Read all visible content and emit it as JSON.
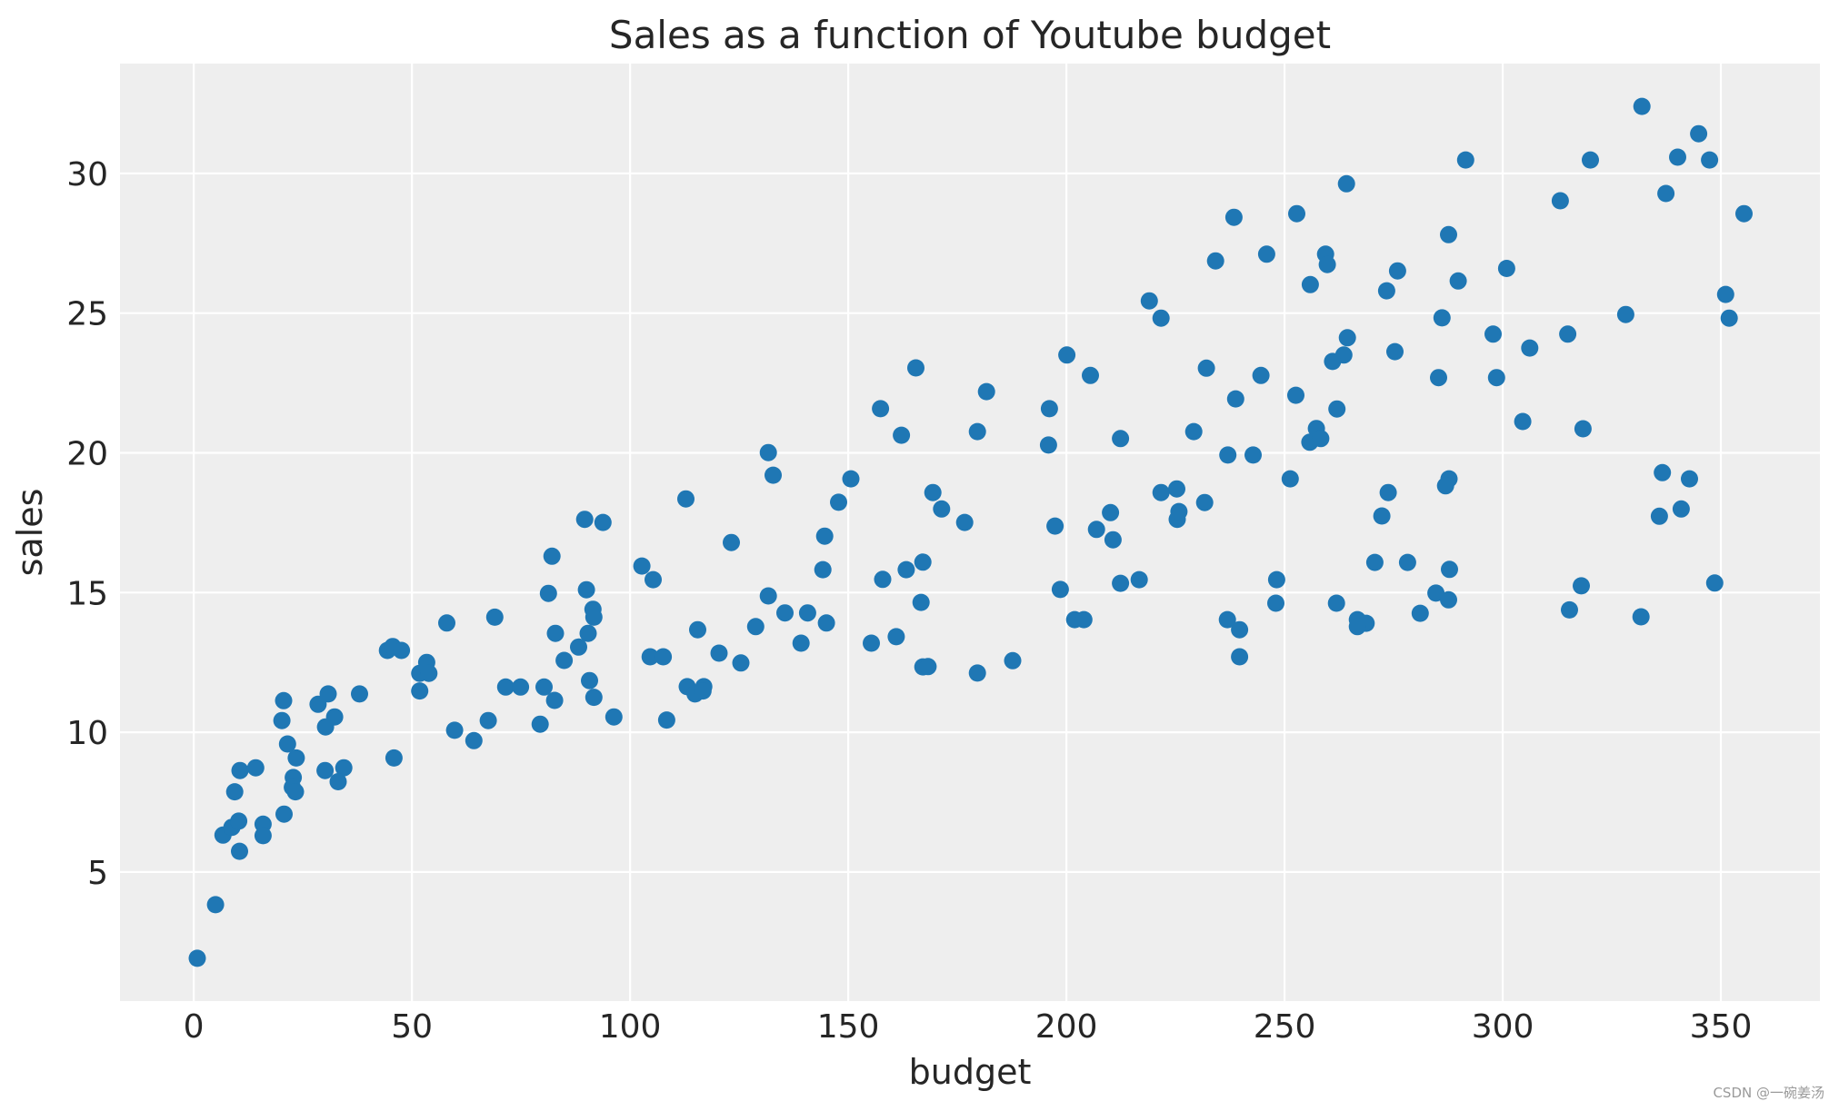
{
  "chart_data": {
    "type": "scatter",
    "title": "Sales as a function of Youtube budget",
    "xlabel": "budget",
    "ylabel": "sales",
    "xlim": [
      -16.9,
      372.7
    ],
    "ylim": [
      0.38,
      33.93
    ],
    "xticks": [
      0,
      50,
      100,
      150,
      200,
      250,
      300,
      350
    ],
    "yticks": [
      5,
      10,
      15,
      20,
      25,
      30
    ],
    "grid": true,
    "legend": null,
    "marker_color": "#1f77b4",
    "background_color": "#eeeeee",
    "points": [
      [
        0.8,
        1.91
      ],
      [
        5.0,
        3.83
      ],
      [
        6.7,
        6.32
      ],
      [
        8.75,
        6.6
      ],
      [
        10.3,
        6.82
      ],
      [
        10.5,
        5.74
      ],
      [
        9.4,
        7.87
      ],
      [
        10.6,
        8.63
      ],
      [
        14.2,
        8.73
      ],
      [
        15.9,
        6.71
      ],
      [
        15.9,
        6.3
      ],
      [
        20.7,
        7.07
      ],
      [
        20.6,
        11.13
      ],
      [
        20.2,
        10.42
      ],
      [
        21.5,
        9.58
      ],
      [
        23.5,
        9.08
      ],
      [
        22.8,
        8.38
      ],
      [
        22.6,
        8.03
      ],
      [
        23.3,
        7.87
      ],
      [
        28.5,
        11.0
      ],
      [
        30.8,
        11.37
      ],
      [
        32.3,
        10.55
      ],
      [
        30.2,
        10.19
      ],
      [
        30.1,
        8.63
      ],
      [
        34.4,
        8.73
      ],
      [
        33.1,
        8.23
      ],
      [
        38.0,
        11.37
      ],
      [
        45.9,
        9.08
      ],
      [
        44.4,
        12.93
      ],
      [
        45.6,
        13.07
      ],
      [
        47.6,
        12.93
      ],
      [
        53.4,
        12.5
      ],
      [
        51.8,
        12.11
      ],
      [
        53.9,
        12.11
      ],
      [
        51.8,
        11.48
      ],
      [
        59.8,
        10.07
      ],
      [
        58.0,
        13.91
      ],
      [
        69.0,
        14.12
      ],
      [
        82.1,
        16.3
      ],
      [
        89.6,
        17.62
      ],
      [
        93.8,
        17.51
      ],
      [
        102.7,
        15.95
      ],
      [
        105.3,
        15.46
      ],
      [
        81.3,
        14.97
      ],
      [
        90.0,
        15.1
      ],
      [
        91.5,
        14.4
      ],
      [
        91.7,
        14.12
      ],
      [
        82.9,
        13.54
      ],
      [
        90.4,
        13.54
      ],
      [
        88.2,
        13.05
      ],
      [
        84.9,
        12.57
      ],
      [
        104.6,
        12.7
      ],
      [
        90.7,
        11.85
      ],
      [
        91.7,
        11.25
      ],
      [
        96.3,
        10.55
      ],
      [
        80.3,
        11.62
      ],
      [
        82.7,
        11.14
      ],
      [
        79.4,
        10.29
      ],
      [
        71.5,
        11.62
      ],
      [
        74.9,
        11.62
      ],
      [
        67.5,
        10.42
      ],
      [
        64.2,
        9.7
      ],
      [
        131.7,
        20.01
      ],
      [
        132.8,
        19.2
      ],
      [
        112.8,
        18.35
      ],
      [
        150.6,
        19.07
      ],
      [
        147.8,
        18.23
      ],
      [
        162.2,
        20.63
      ],
      [
        123.2,
        16.79
      ],
      [
        144.6,
        17.02
      ],
      [
        144.2,
        15.82
      ],
      [
        157.9,
        15.47
      ],
      [
        163.3,
        15.82
      ],
      [
        167.1,
        16.09
      ],
      [
        166.7,
        14.65
      ],
      [
        131.7,
        14.88
      ],
      [
        135.5,
        14.27
      ],
      [
        140.7,
        14.27
      ],
      [
        145.0,
        13.91
      ],
      [
        139.2,
        13.19
      ],
      [
        155.3,
        13.19
      ],
      [
        161.0,
        13.42
      ],
      [
        128.8,
        13.78
      ],
      [
        115.5,
        13.67
      ],
      [
        120.4,
        12.83
      ],
      [
        125.4,
        12.48
      ],
      [
        107.6,
        12.7
      ],
      [
        113.1,
        11.63
      ],
      [
        116.9,
        11.63
      ],
      [
        114.9,
        11.37
      ],
      [
        116.7,
        11.48
      ],
      [
        108.4,
        10.44
      ],
      [
        167.1,
        12.34
      ],
      [
        168.3,
        12.35
      ],
      [
        165.5,
        23.04
      ],
      [
        157.4,
        21.58
      ],
      [
        181.7,
        22.19
      ],
      [
        179.6,
        20.76
      ],
      [
        200.1,
        23.5
      ],
      [
        205.5,
        22.77
      ],
      [
        196.1,
        21.58
      ],
      [
        195.9,
        20.28
      ],
      [
        212.4,
        20.51
      ],
      [
        169.4,
        18.58
      ],
      [
        171.4,
        17.99
      ],
      [
        176.7,
        17.51
      ],
      [
        197.4,
        17.38
      ],
      [
        210.1,
        17.86
      ],
      [
        206.9,
        17.26
      ],
      [
        210.7,
        16.89
      ],
      [
        221.7,
        18.58
      ],
      [
        225.3,
        18.71
      ],
      [
        225.4,
        17.62
      ],
      [
        225.8,
        17.9
      ],
      [
        198.6,
        15.11
      ],
      [
        212.4,
        15.33
      ],
      [
        216.7,
        15.46
      ],
      [
        201.9,
        14.03
      ],
      [
        204.0,
        14.03
      ],
      [
        179.6,
        12.12
      ],
      [
        187.7,
        12.56
      ],
      [
        264.2,
        29.63
      ],
      [
        238.4,
        28.43
      ],
      [
        252.8,
        28.56
      ],
      [
        245.9,
        27.11
      ],
      [
        234.2,
        26.87
      ],
      [
        259.4,
        27.11
      ],
      [
        259.8,
        26.74
      ],
      [
        255.9,
        26.02
      ],
      [
        219.0,
        25.44
      ],
      [
        221.7,
        24.82
      ],
      [
        264.4,
        24.12
      ],
      [
        263.6,
        23.5
      ],
      [
        261.0,
        23.27
      ],
      [
        232.1,
        23.03
      ],
      [
        244.6,
        22.77
      ],
      [
        238.8,
        21.93
      ],
      [
        252.6,
        22.06
      ],
      [
        262.0,
        21.57
      ],
      [
        229.2,
        20.76
      ],
      [
        237.0,
        19.92
      ],
      [
        242.8,
        19.92
      ],
      [
        257.3,
        20.87
      ],
      [
        255.8,
        20.38
      ],
      [
        258.3,
        20.51
      ],
      [
        251.3,
        19.07
      ],
      [
        231.7,
        18.22
      ],
      [
        273.75,
        18.58
      ],
      [
        272.3,
        17.74
      ],
      [
        287.7,
        19.07
      ],
      [
        286.9,
        18.82
      ],
      [
        270.7,
        16.08
      ],
      [
        278.2,
        16.08
      ],
      [
        287.8,
        15.83
      ],
      [
        248.2,
        15.46
      ],
      [
        248.0,
        14.62
      ],
      [
        261.9,
        14.62
      ],
      [
        284.7,
        14.98
      ],
      [
        287.6,
        14.74
      ],
      [
        281.1,
        14.26
      ],
      [
        266.7,
        14.03
      ],
      [
        268.7,
        13.9
      ],
      [
        266.7,
        13.78
      ],
      [
        236.9,
        14.03
      ],
      [
        239.7,
        13.67
      ],
      [
        239.7,
        12.7
      ],
      [
        291.5,
        30.48
      ],
      [
        287.6,
        27.81
      ],
      [
        275.9,
        26.51
      ],
      [
        273.4,
        25.8
      ],
      [
        289.8,
        26.15
      ],
      [
        300.9,
        26.6
      ],
      [
        286.1,
        24.83
      ],
      [
        275.3,
        23.62
      ],
      [
        297.8,
        24.25
      ],
      [
        306.2,
        23.75
      ],
      [
        285.3,
        22.69
      ],
      [
        298.6,
        22.69
      ],
      [
        304.6,
        21.12
      ],
      [
        331.9,
        32.4
      ],
      [
        344.9,
        31.42
      ],
      [
        340.1,
        30.58
      ],
      [
        347.4,
        30.48
      ],
      [
        320.1,
        30.48
      ],
      [
        313.2,
        29.02
      ],
      [
        337.4,
        29.28
      ],
      [
        355.3,
        28.56
      ],
      [
        351.1,
        25.67
      ],
      [
        351.9,
        24.82
      ],
      [
        328.2,
        24.95
      ],
      [
        314.9,
        24.25
      ],
      [
        318.4,
        20.86
      ],
      [
        336.6,
        19.29
      ],
      [
        342.8,
        19.07
      ],
      [
        335.9,
        17.73
      ],
      [
        340.9,
        17.99
      ],
      [
        318.0,
        15.24
      ],
      [
        315.3,
        14.38
      ],
      [
        331.7,
        14.13
      ],
      [
        348.6,
        15.34
      ]
    ]
  },
  "watermark": "CSDN @一碗姜汤"
}
